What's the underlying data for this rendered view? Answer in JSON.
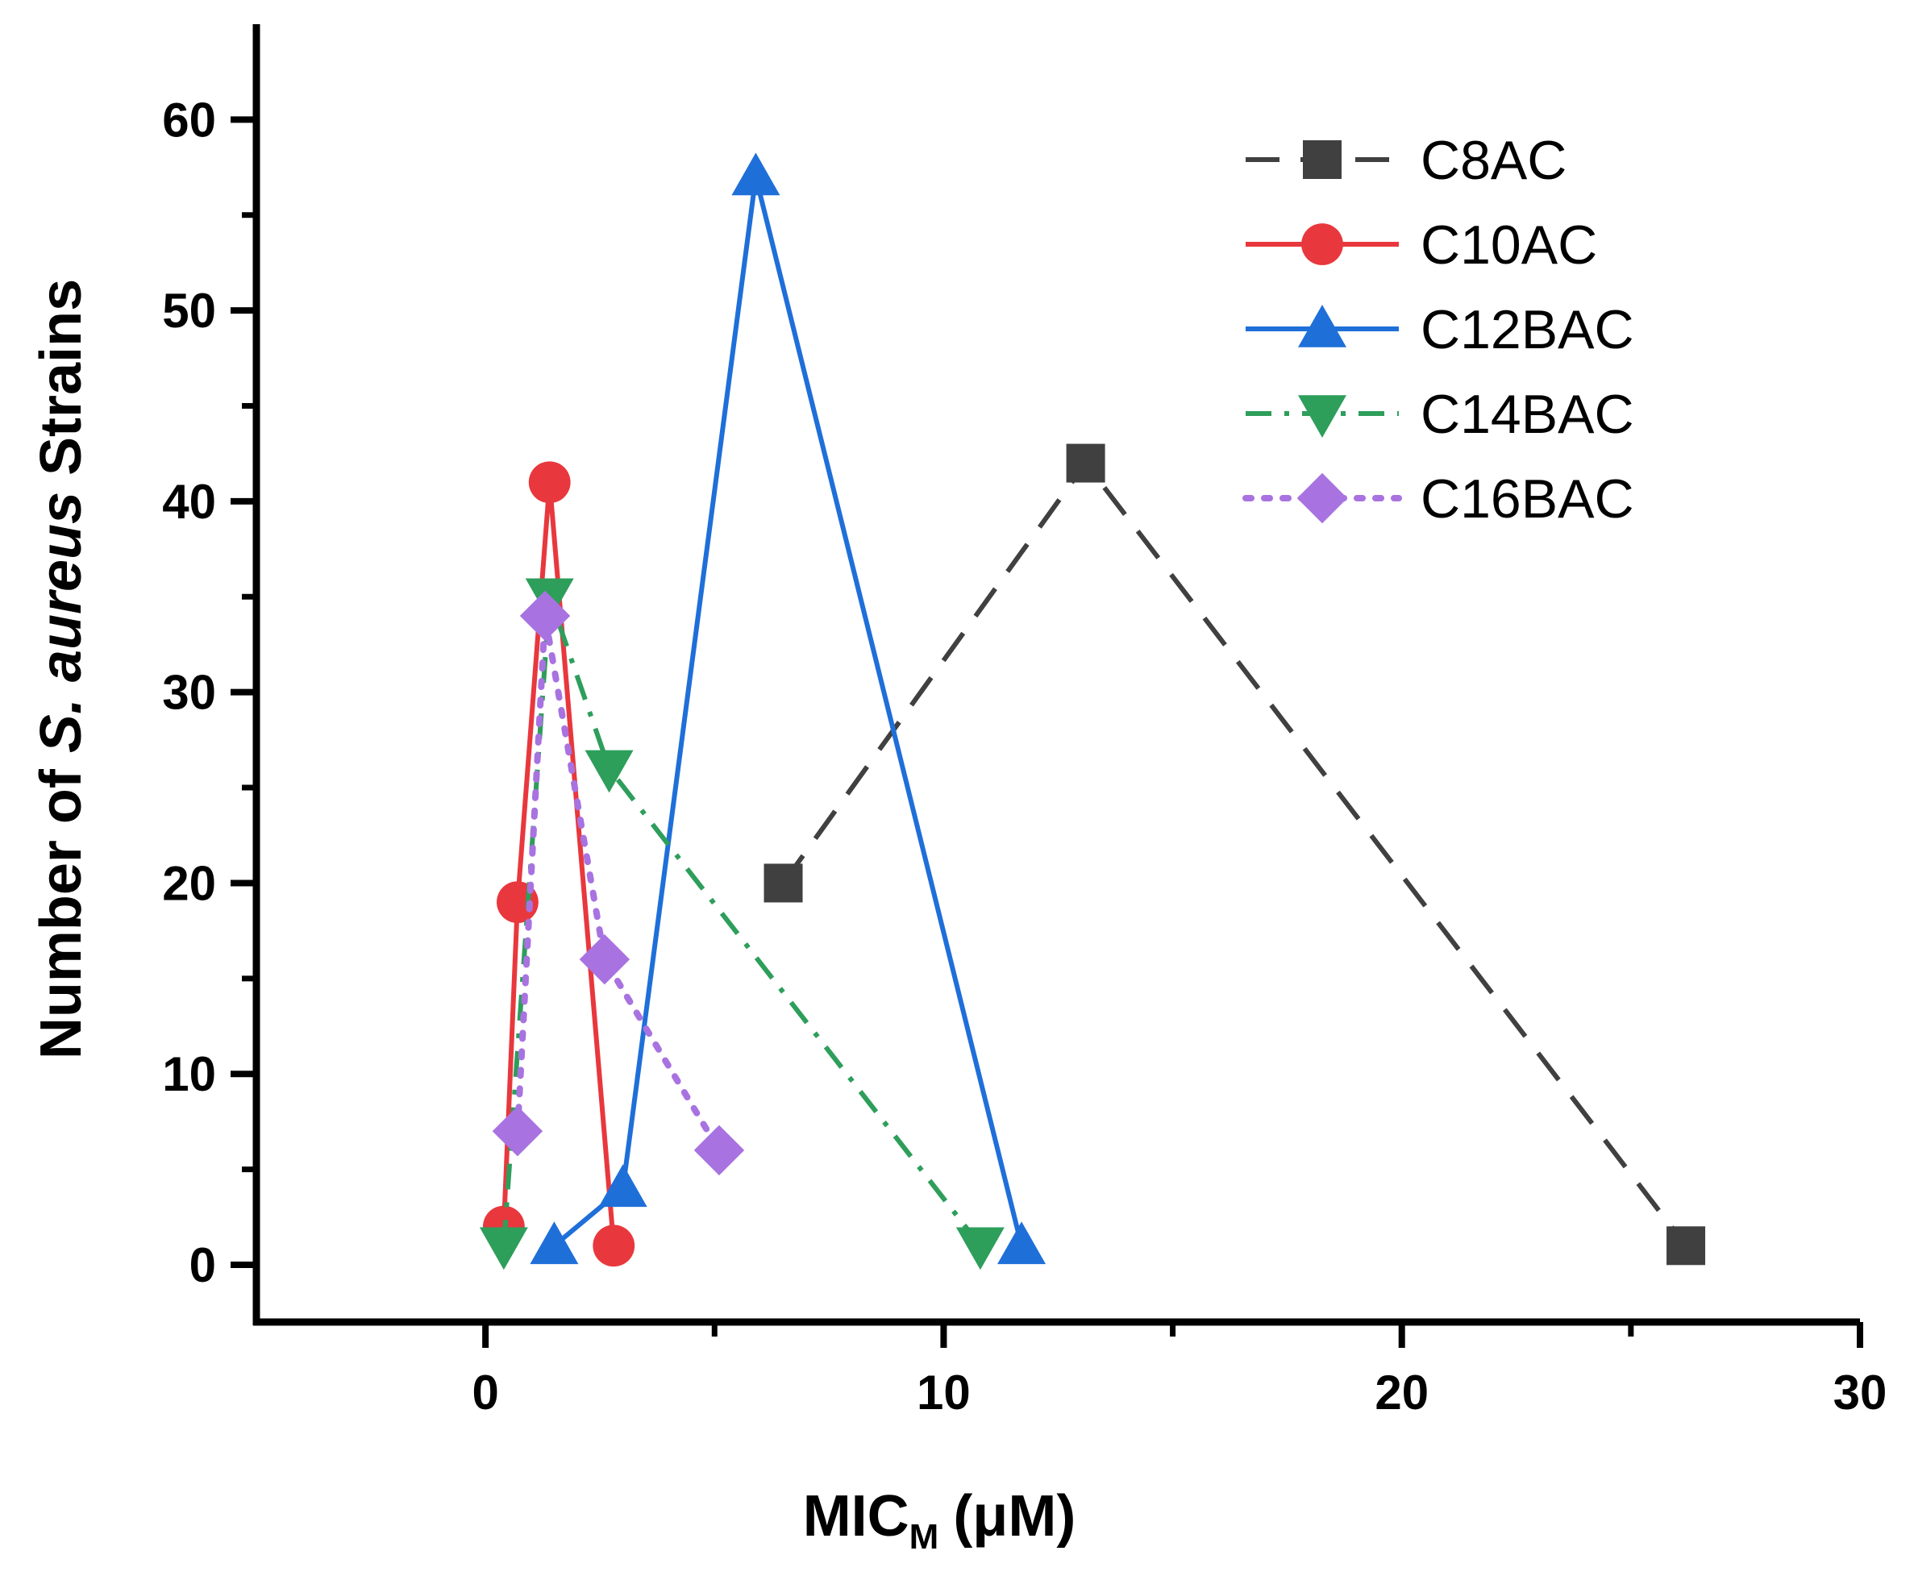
{
  "chart_data": {
    "type": "line",
    "xlabel_main": "MIC",
    "xlabel_sub": "M",
    "xlabel_unit": "(μM)",
    "ylabel_prefix": "Number of ",
    "ylabel_italic": "S. aureus",
    "ylabel_suffix": " Strains",
    "xlim": [
      -5,
      30
    ],
    "ylim": [
      -3,
      65
    ],
    "x_ticks": [
      0,
      10,
      20,
      30
    ],
    "y_ticks": [
      0,
      10,
      20,
      30,
      40,
      50,
      60
    ],
    "x_tick_labels": [
      "0",
      "10",
      "20",
      "30"
    ],
    "y_tick_labels": [
      "0",
      "10",
      "20",
      "30",
      "40",
      "50",
      "60"
    ],
    "legend_position": "top-right",
    "series": [
      {
        "name": "C8AC",
        "color": "#404040",
        "marker": "square",
        "dash": "long-dash",
        "x": [
          6.5,
          13.1,
          26.2
        ],
        "y": [
          20,
          42,
          1
        ]
      },
      {
        "name": "C10AC",
        "color": "#e8383d",
        "marker": "circle",
        "dash": "solid",
        "x": [
          0.4,
          0.7,
          1.4,
          2.8
        ],
        "y": [
          2,
          19,
          41,
          1
        ]
      },
      {
        "name": "C12BAC",
        "color": "#1f6fd9",
        "marker": "triangle-up",
        "dash": "solid",
        "x": [
          1.5,
          3.0,
          5.9,
          11.7
        ],
        "y": [
          1,
          4,
          57,
          1
        ]
      },
      {
        "name": "C14BAC",
        "color": "#2e9e5b",
        "marker": "triangle-down",
        "dash": "dash-dot",
        "x": [
          0.4,
          1.4,
          2.7,
          10.8
        ],
        "y": [
          1,
          35,
          26,
          1
        ]
      },
      {
        "name": "C16BAC",
        "color": "#a873e0",
        "marker": "diamond",
        "dash": "dotted",
        "x": [
          0.7,
          1.3,
          2.6,
          5.1
        ],
        "y": [
          7,
          34,
          16,
          6
        ]
      }
    ]
  }
}
